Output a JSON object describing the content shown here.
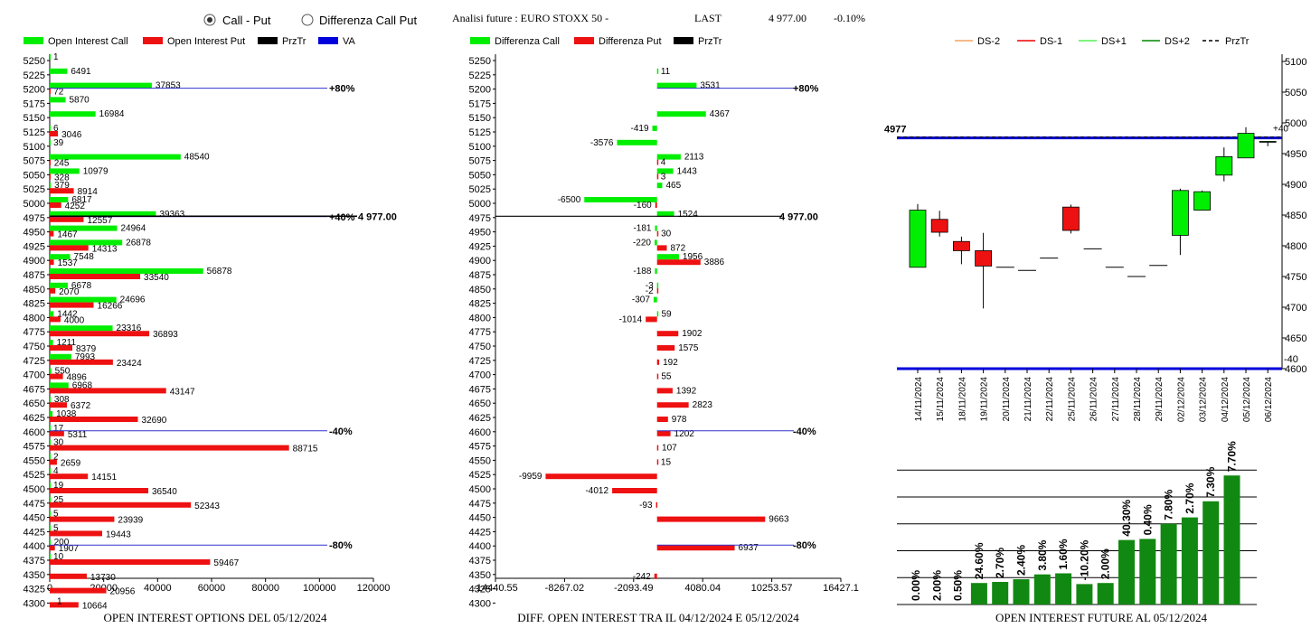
{
  "header": {
    "radio_call_put": "Call - Put",
    "radio_diff": "Differenza Call Put",
    "analysis_title": "Analisi future : EURO STOXX 50 -",
    "last_label": "LAST",
    "last_value": "4 977.00",
    "change": "-0.10%"
  },
  "colors": {
    "call": "#00ee00",
    "put": "#ee1111",
    "przTr": "#000000",
    "va": "#0000dd",
    "future_bar": "#118811",
    "ds_minus2": "#f4a460",
    "ds_minus1": "#ee0000",
    "ds_plus1": "#55ee55",
    "ds_plus2": "#008800"
  },
  "chart_data": [
    {
      "type": "bar",
      "title": "OPEN INTEREST OPTIONS DEL 05/12/2024",
      "orientation": "horizontal",
      "legend": [
        "Open Interest Call",
        "Open Interest Put",
        "PrzTr",
        "VA"
      ],
      "strikes": [
        "5250",
        "5225",
        "5200",
        "5175",
        "5150",
        "5125",
        "5100",
        "5075",
        "5050",
        "5025",
        "5000",
        "4975",
        "4950",
        "4925",
        "4900",
        "4875",
        "4850",
        "4825",
        "4800",
        "4775",
        "4750",
        "4725",
        "4700",
        "4675",
        "4650",
        "4625",
        "4600",
        "4575",
        "4550",
        "4525",
        "4500",
        "4475",
        "4450",
        "4425",
        "4400",
        "4375",
        "4350",
        "4325",
        "4300"
      ],
      "series": [
        {
          "name": "Open Interest Call",
          "values": [
            1,
            6491,
            37853,
            5870,
            16984,
            6,
            39,
            48540,
            10979,
            379,
            6817,
            39363,
            24964,
            26878,
            7548,
            56878,
            6678,
            24696,
            1442,
            23316,
            1211,
            7993,
            550,
            6968,
            308,
            1038,
            17,
            30,
            2,
            4,
            19,
            25,
            5,
            5,
            200,
            10,
            null,
            null,
            null
          ]
        },
        {
          "name": "Open Interest Put",
          "values": [
            null,
            null,
            72,
            null,
            null,
            3046,
            null,
            245,
            328,
            8914,
            4252,
            12557,
            1467,
            14313,
            1537,
            33540,
            2070,
            16266,
            4000,
            36893,
            8379,
            23424,
            4896,
            43147,
            6372,
            32690,
            5311,
            88715,
            2659,
            14151,
            36540,
            52343,
            23939,
            19443,
            1907,
            59467,
            13730,
            20956,
            10664
          ]
        },
        {
          "name": "PrzTr",
          "values": [
            {
              "level": "4977",
              "label": "4 977.00"
            }
          ]
        },
        {
          "name": "VA",
          "values": [
            {
              "level": "5200",
              "label": "+80%"
            },
            {
              "level": "4975",
              "label": "+40%"
            },
            {
              "level": "4600",
              "label": "-40%"
            },
            {
              "level": "4400",
              "label": "-80%"
            }
          ]
        }
      ],
      "x_ticks": [
        "0",
        "20000",
        "40000",
        "60000",
        "80000",
        "100000",
        "120000"
      ],
      "xlim": [
        0,
        120000
      ],
      "last_label": "1",
      "last_label_value": 1
    },
    {
      "type": "bar",
      "title": "DIFF. OPEN INTEREST TRA IL 04/12/2024 E 05/12/2024",
      "orientation": "horizontal",
      "legend": [
        "Differenza Call",
        "Differenza Put",
        "PrzTr"
      ],
      "strikes": [
        "5250",
        "5225",
        "5200",
        "5175",
        "5150",
        "5125",
        "5100",
        "5075",
        "5050",
        "5025",
        "5000",
        "4975",
        "4950",
        "4925",
        "4900",
        "4875",
        "4850",
        "4825",
        "4800",
        "4775",
        "4750",
        "4725",
        "4700",
        "4675",
        "4650",
        "4625",
        "4600",
        "4575",
        "4550",
        "4525",
        "4500",
        "4475",
        "4450",
        "4425",
        "4400",
        "4375",
        "4350",
        "4325",
        "4300"
      ],
      "series": [
        {
          "name": "Differenza Call",
          "values": [
            null,
            11,
            3531,
            null,
            4367,
            -419,
            -3576,
            2113,
            1443,
            465,
            -6500,
            1524,
            -181,
            -220,
            1956,
            -188,
            -3,
            -307,
            59,
            null,
            null,
            null,
            null,
            null,
            null,
            null,
            null,
            null,
            null,
            null,
            null,
            null,
            null,
            null,
            null,
            null,
            null,
            null,
            null
          ]
        },
        {
          "name": "Differenza Put",
          "values": [
            null,
            null,
            null,
            null,
            null,
            null,
            null,
            4,
            3,
            null,
            -160,
            null,
            30,
            872,
            3886,
            null,
            -2,
            null,
            -1014,
            1902,
            1575,
            192,
            55,
            1392,
            2823,
            978,
            1202,
            107,
            15,
            -9959,
            -4012,
            -93,
            9663,
            null,
            6937,
            null,
            -242,
            null,
            null
          ]
        },
        {
          "name": "PrzTr",
          "values": [
            {
              "level": "4977",
              "label": "4 977.00"
            }
          ]
        }
      ],
      "va_lines": [
        {
          "level": "5200",
          "label": "+80%"
        },
        {
          "level": "4600",
          "label": "-40%"
        },
        {
          "level": "4400",
          "label": "-80%"
        }
      ],
      "x_ticks": [
        "-14440.55",
        "-8267.02",
        "-2093.49",
        "4080.04",
        "10253.57",
        "16427.1"
      ],
      "xlim": [
        -14440.55,
        16427.1
      ]
    },
    {
      "type": "candlestick",
      "legend": [
        "DS-2",
        "DS-1",
        "DS+1",
        "DS+2",
        "PrzTr"
      ],
      "dates": [
        "14/11/2024",
        "15/11/2024",
        "18/11/2024",
        "19/11/2024",
        "20/11/2024",
        "21/11/2024",
        "22/11/2024",
        "25/11/2024",
        "26/11/2024",
        "27/11/2024",
        "28/11/2024",
        "29/11/2024",
        "02/12/2024",
        "03/12/2024",
        "04/12/2024",
        "05/12/2024",
        "06/12/2024"
      ],
      "candles": [
        {
          "open": 4765,
          "high": 4868,
          "low": 4765,
          "close": 4858
        },
        {
          "open": 4843,
          "high": 4857,
          "low": 4815,
          "close": 4822
        },
        {
          "open": 4807,
          "high": 4815,
          "low": 4770,
          "close": 4792
        },
        {
          "open": 4792,
          "high": 4821,
          "low": 4698,
          "close": 4767
        },
        {
          "open": 4765,
          "high": 4765,
          "low": 4765,
          "close": 4765
        },
        {
          "open": 4760,
          "high": 4760,
          "low": 4760,
          "close": 4760
        },
        {
          "open": 4780,
          "high": 4780,
          "low": 4780,
          "close": 4780
        },
        {
          "open": 4863,
          "high": 4867,
          "low": 4820,
          "close": 4825
        },
        {
          "open": 4795,
          "high": 4795,
          "low": 4795,
          "close": 4795
        },
        {
          "open": 4765,
          "high": 4765,
          "low": 4765,
          "close": 4765
        },
        {
          "open": 4750,
          "high": 4750,
          "low": 4750,
          "close": 4750
        },
        {
          "open": 4768,
          "high": 4768,
          "low": 4768,
          "close": 4768
        },
        {
          "open": 4817,
          "high": 4893,
          "low": 4785,
          "close": 4890
        },
        {
          "open": 4858,
          "high": 4890,
          "low": 4858,
          "close": 4888
        },
        {
          "open": 4915,
          "high": 4960,
          "low": 4905,
          "close": 4945
        },
        {
          "open": 4943,
          "high": 4993,
          "low": 4943,
          "close": 4983
        },
        {
          "open": 4970,
          "high": 4970,
          "low": 4962,
          "close": 4970
        }
      ],
      "y_ticks": [
        "4600",
        "4650",
        "4700",
        "4750",
        "4800",
        "4850",
        "4900",
        "4950",
        "5000",
        "5050",
        "5100"
      ],
      "ylim": [
        4600,
        5100
      ],
      "przTr_value": 4977,
      "przTr_label": "4977",
      "upper_label": "+40",
      "lower_label": "-40"
    },
    {
      "type": "bar",
      "title": "OPEN INTEREST FUTURE AL 05/12/2024",
      "categories": [
        "14/11/2024",
        "15/11/2024",
        "18/11/2024",
        "19/11/2024",
        "20/11/2024",
        "21/11/2024",
        "22/11/2024",
        "25/11/2024",
        "26/11/2024",
        "27/11/2024",
        "28/11/2024",
        "29/11/2024",
        "02/12/2024",
        "03/12/2024",
        "04/12/2024",
        "05/12/2024"
      ],
      "values": [
        0,
        0,
        0,
        0.4,
        0.42,
        0.47,
        0.56,
        0.58,
        0.38,
        0.4,
        1.2,
        1.22,
        1.5,
        1.62,
        1.92,
        2.4
      ],
      "labels": [
        "0.00%",
        "2.00%",
        "0.50%",
        "24.60%",
        "2.70%",
        "2.40%",
        "3.80%",
        "1.60%",
        "-10.20%",
        "2.00%",
        "40.30%",
        "0.40%",
        "7.80%",
        "2.70%",
        "7.30%",
        "7.70%"
      ]
    }
  ]
}
